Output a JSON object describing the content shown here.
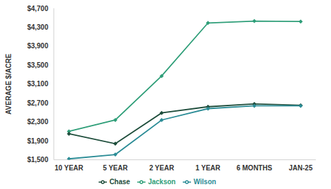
{
  "chart_data": {
    "type": "line",
    "y_label": "AVERAGE $/ACRE",
    "categories": [
      "10 YEAR",
      "5 YEAR",
      "2 YEAR",
      "1 YEAR",
      "6 MONTHS",
      "JAN-25"
    ],
    "series": [
      {
        "name": "Jackson",
        "color": "#2e9e78",
        "values": [
          2100,
          2340,
          3270,
          4390,
          4430,
          4420
        ]
      },
      {
        "name": "Chase",
        "color": "#1e4d3b",
        "values": [
          2050,
          1840,
          2490,
          2620,
          2680,
          2650
        ]
      },
      {
        "name": "Wilson",
        "color": "#2b8c96",
        "values": [
          1520,
          1610,
          2340,
          2580,
          2640,
          2640
        ]
      }
    ],
    "ylim": [
      1500,
      4700
    ],
    "yticks": [
      {
        "value": 1500,
        "label": "$1,500"
      },
      {
        "value": 1900,
        "label": "$1,900"
      },
      {
        "value": 2300,
        "label": "$2,300"
      },
      {
        "value": 2700,
        "label": "$2,700"
      },
      {
        "value": 3100,
        "label": "$3,100"
      },
      {
        "value": 3500,
        "label": "$3,500"
      },
      {
        "value": 3900,
        "label": "$3,900"
      },
      {
        "value": 4300,
        "label": "$4,300"
      },
      {
        "value": 4700,
        "label": "$4,700"
      }
    ],
    "grid": false,
    "legend": "bottom",
    "marker": "diamond"
  }
}
